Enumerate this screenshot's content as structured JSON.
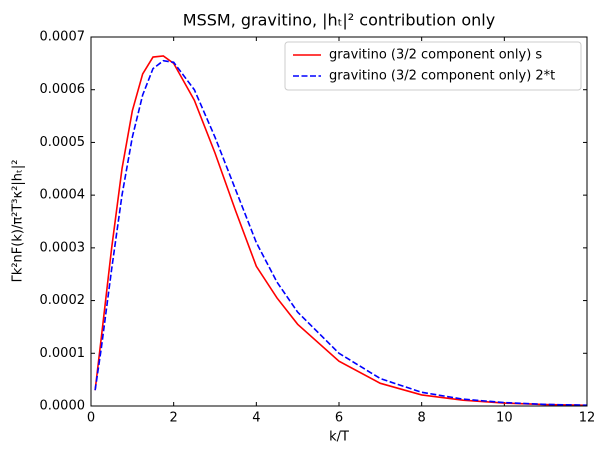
{
  "chart_data": {
    "type": "line",
    "title": "MSSM, gravitino, |hₜ|² contribution only",
    "x_label": "k/T",
    "y_label": "Γk²nF(k)/π²T³κ²|hₜ|²",
    "x": [
      0.1,
      0.25,
      0.5,
      0.75,
      1,
      1.25,
      1.5,
      1.75,
      2,
      2.5,
      3,
      3.5,
      4,
      4.5,
      5,
      6,
      7,
      8,
      9,
      10,
      11,
      12
    ],
    "series": [
      {
        "name": "gravitino (3/2 component only) s",
        "color": "#ff0000",
        "dash": "solid",
        "values": [
          3e-05,
          0.00013,
          0.0003,
          0.00045,
          0.00056,
          0.00063,
          0.000662,
          0.000664,
          0.00065,
          0.00058,
          0.00048,
          0.00037,
          0.000265,
          0.000205,
          0.000155,
          8.5e-05,
          4.3e-05,
          2.1e-05,
          1.1e-05,
          5.5e-06,
          2.7e-06,
          1.3e-06
        ]
      },
      {
        "name": "gravitino (3/2 component only) 2*t",
        "color": "#0000ff",
        "dash": "dashed",
        "values": [
          3e-05,
          0.00011,
          0.00026,
          0.0004,
          0.00051,
          0.00059,
          0.00064,
          0.000655,
          0.000652,
          0.0006,
          0.00051,
          0.00041,
          0.00031,
          0.000235,
          0.000178,
          0.0001,
          5.2e-05,
          2.6e-05,
          1.3e-05,
          6.5e-06,
          3e-06,
          1.5e-06
        ]
      }
    ],
    "xlim": [
      0,
      12
    ],
    "ylim": [
      0,
      0.0007
    ],
    "xticks": [
      0,
      2,
      4,
      6,
      8,
      10,
      12
    ],
    "yticks": [
      {
        "value": 0,
        "label": "0.0000"
      },
      {
        "value": 0.0001,
        "label": "0.0001"
      },
      {
        "value": 0.0002,
        "label": "0.0002"
      },
      {
        "value": 0.0003,
        "label": "0.0003"
      },
      {
        "value": 0.0004,
        "label": "0.0004"
      },
      {
        "value": 0.0005,
        "label": "0.0005"
      },
      {
        "value": 0.0006,
        "label": "0.0006"
      },
      {
        "value": 0.0007,
        "label": "0.0007"
      }
    ],
    "legend": "upper right",
    "grid": false
  }
}
